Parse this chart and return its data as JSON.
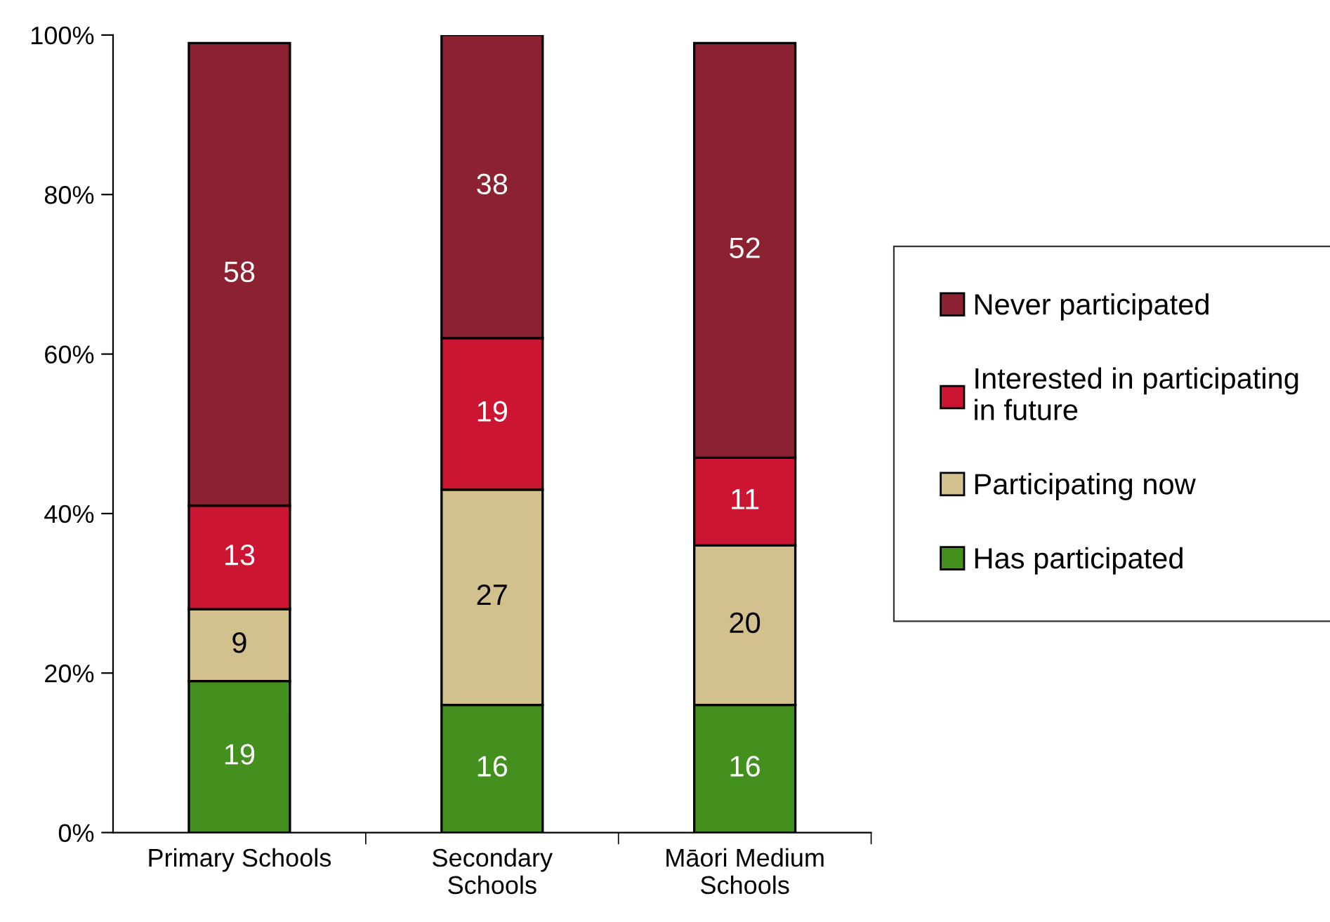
{
  "chart_data": {
    "type": "bar",
    "stacked": true,
    "categories": [
      "Primary Schools",
      "Secondary\nSchools",
      "Māori Medium\nSchools"
    ],
    "series": [
      {
        "name": "Has participated",
        "color": "#43901e",
        "values": [
          19,
          16,
          16
        ]
      },
      {
        "name": "Participating now",
        "color": "#d2c08e",
        "values": [
          9,
          27,
          20
        ]
      },
      {
        "name": "Interested in participating\nin future",
        "color": "#cc1433",
        "values": [
          13,
          19,
          11
        ]
      },
      {
        "name": "Never participated",
        "color": "#8b2131",
        "values": [
          58,
          38,
          52
        ]
      }
    ],
    "ylim": [
      0,
      100
    ],
    "yticks": [
      {
        "value": 0,
        "label": "0%"
      },
      {
        "value": 20,
        "label": "20%"
      },
      {
        "value": 40,
        "label": "40%"
      },
      {
        "value": 60,
        "label": "60%"
      },
      {
        "value": 80,
        "label": "80%"
      },
      {
        "value": 100,
        "label": "100%"
      }
    ],
    "data_labels": true,
    "grid": false,
    "legend": "right"
  }
}
